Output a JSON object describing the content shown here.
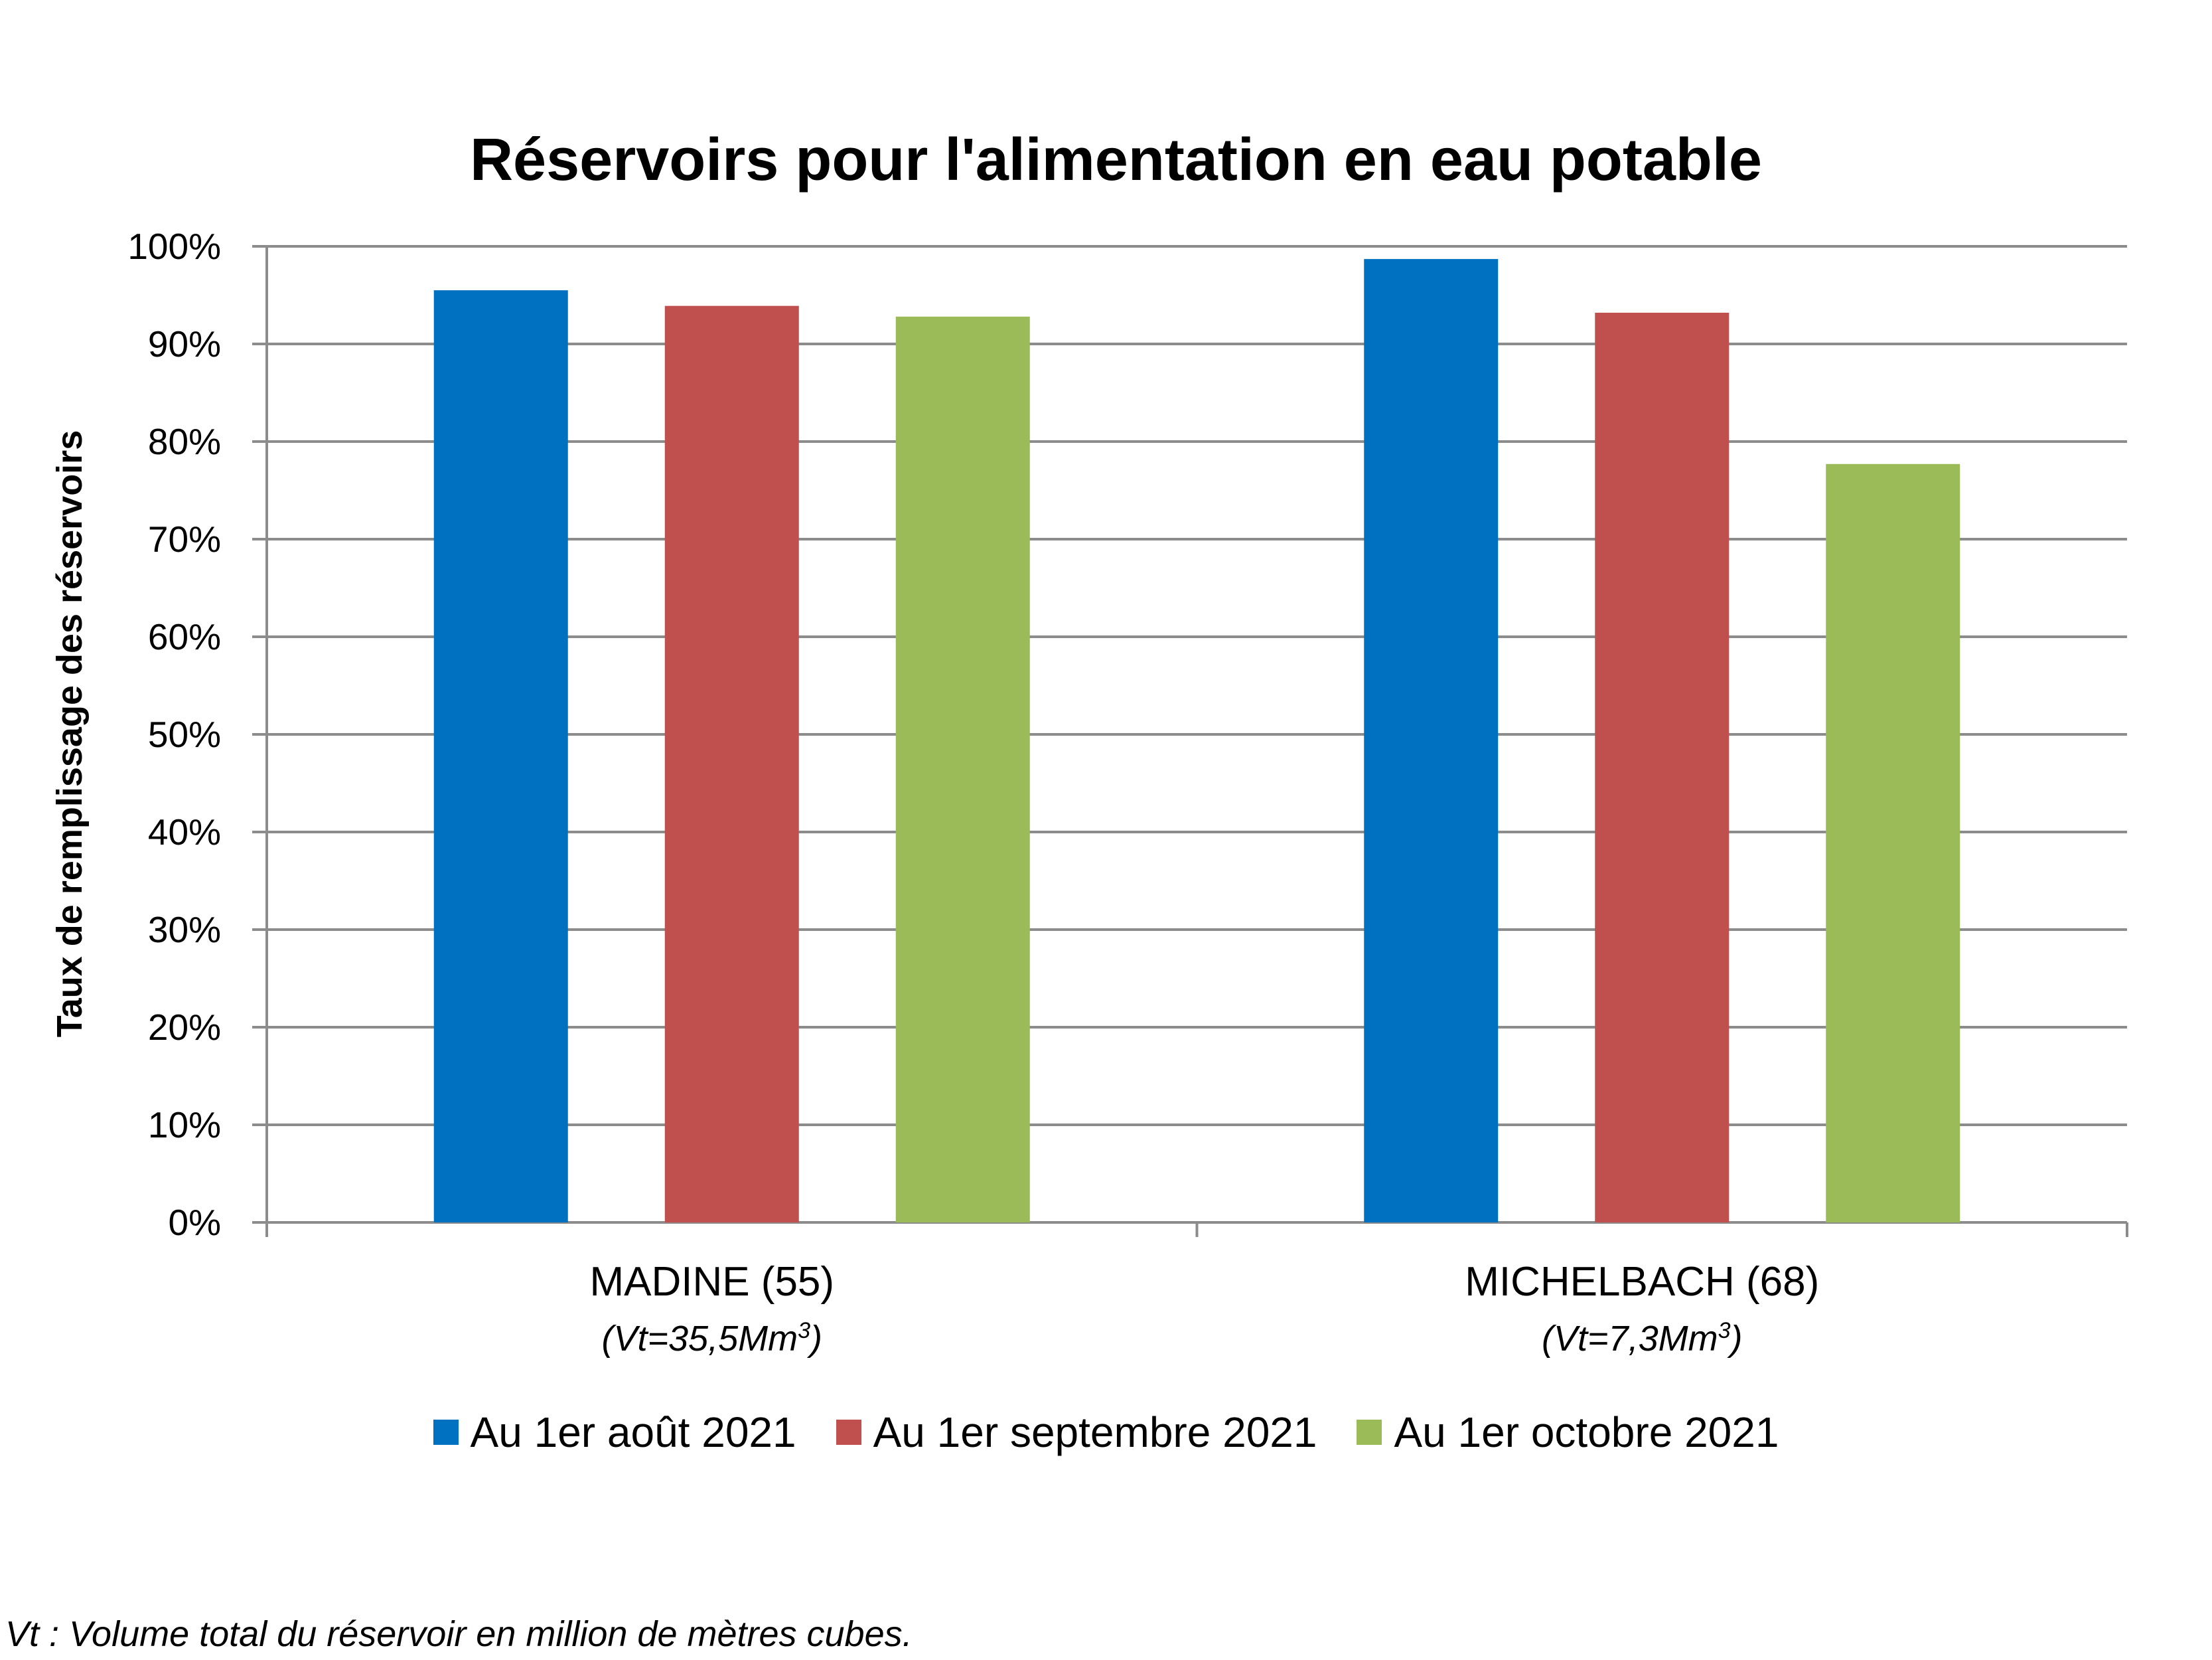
{
  "chart_data": {
    "type": "bar",
    "title": "Réservoirs pour l'alimentation en eau potable",
    "ylabel": "Taux de remplissage des réservoirs",
    "xlabel": "",
    "ylim": [
      0,
      100
    ],
    "yticks": [
      "0%",
      "10%",
      "20%",
      "30%",
      "40%",
      "50%",
      "60%",
      "70%",
      "80%",
      "90%",
      "100%"
    ],
    "categories": [
      {
        "name": "MADINE (55)",
        "sub_prefix": "(Vt=35,5Mm",
        "sub_sup": "3",
        "sub_suffix": ")"
      },
      {
        "name": "MICHELBACH (68)",
        "sub_prefix": "(Vt=7,3Mm",
        "sub_sup": "3",
        "sub_suffix": ")"
      }
    ],
    "series": [
      {
        "name": "Au 1er août 2021",
        "color": "#0070C0",
        "values": [
          95.5,
          98.7
        ]
      },
      {
        "name": "Au 1er septembre 2021",
        "color": "#C0504D",
        "values": [
          93.9,
          93.2
        ]
      },
      {
        "name": "Au 1er octobre 2021",
        "color": "#9BBB59",
        "values": [
          92.8,
          77.7
        ]
      }
    ],
    "grid": true,
    "legend_position": "bottom"
  },
  "footnote": "Vt : Volume total du réservoir en million de mètres cubes."
}
